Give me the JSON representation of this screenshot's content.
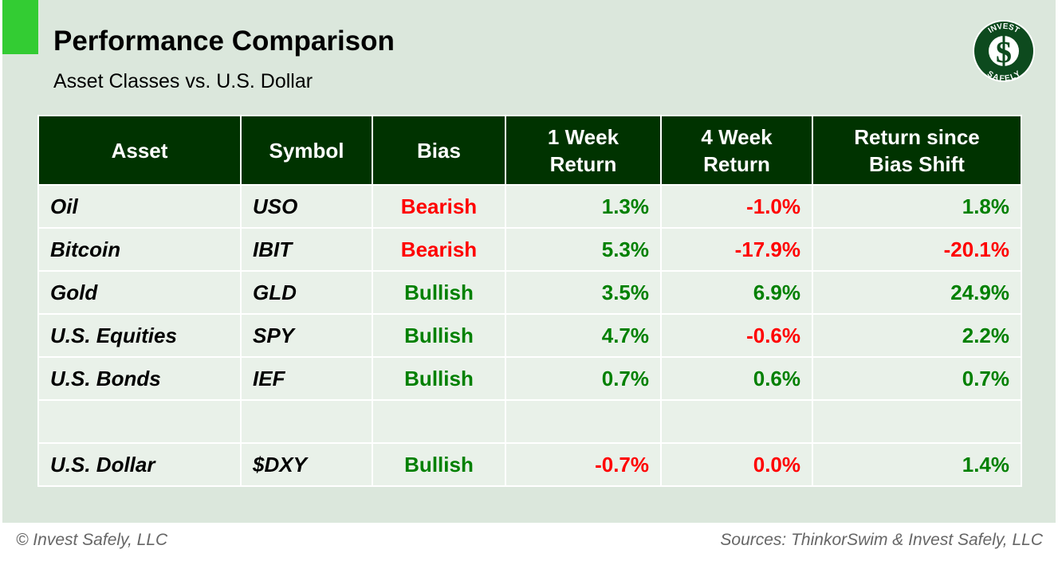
{
  "title": "Performance Comparison",
  "subtitle": "Asset Classes vs. U.S. Dollar",
  "logo": {
    "top_text": "INVEST",
    "bottom_text": "SAFELY",
    "symbol": "$"
  },
  "colors": {
    "header_bg": "#003300",
    "positive": "#008000",
    "negative": "#ff0000",
    "accent": "#33cc33"
  },
  "table": {
    "headers": [
      "Asset",
      "Symbol",
      "Bias",
      "1 Week Return",
      "4 Week Return",
      "Return since Bias Shift"
    ],
    "rows": [
      {
        "asset": "Oil",
        "symbol": "USO",
        "bias": "Bearish",
        "w1": "1.3%",
        "w4": "-1.0%",
        "since": "1.8%"
      },
      {
        "asset": "Bitcoin",
        "symbol": "IBIT",
        "bias": "Bearish",
        "w1": "5.3%",
        "w4": "-17.9%",
        "since": "-20.1%"
      },
      {
        "asset": "Gold",
        "symbol": "GLD",
        "bias": "Bullish",
        "w1": "3.5%",
        "w4": "6.9%",
        "since": "24.9%"
      },
      {
        "asset": "U.S. Equities",
        "symbol": "SPY",
        "bias": "Bullish",
        "w1": "4.7%",
        "w4": "-0.6%",
        "since": "2.2%"
      },
      {
        "asset": "U.S. Bonds",
        "symbol": "IEF",
        "bias": "Bullish",
        "w1": "0.7%",
        "w4": "0.6%",
        "since": "0.7%"
      }
    ],
    "benchmark": {
      "asset": "U.S. Dollar",
      "symbol": "$DXY",
      "bias": "Bullish",
      "w1": "-0.7%",
      "w4": "0.0%",
      "since": "1.4%"
    }
  },
  "footer": {
    "left": "© Invest Safely, LLC",
    "right": "Sources: ThinkorSwim & Invest Safely, LLC"
  }
}
